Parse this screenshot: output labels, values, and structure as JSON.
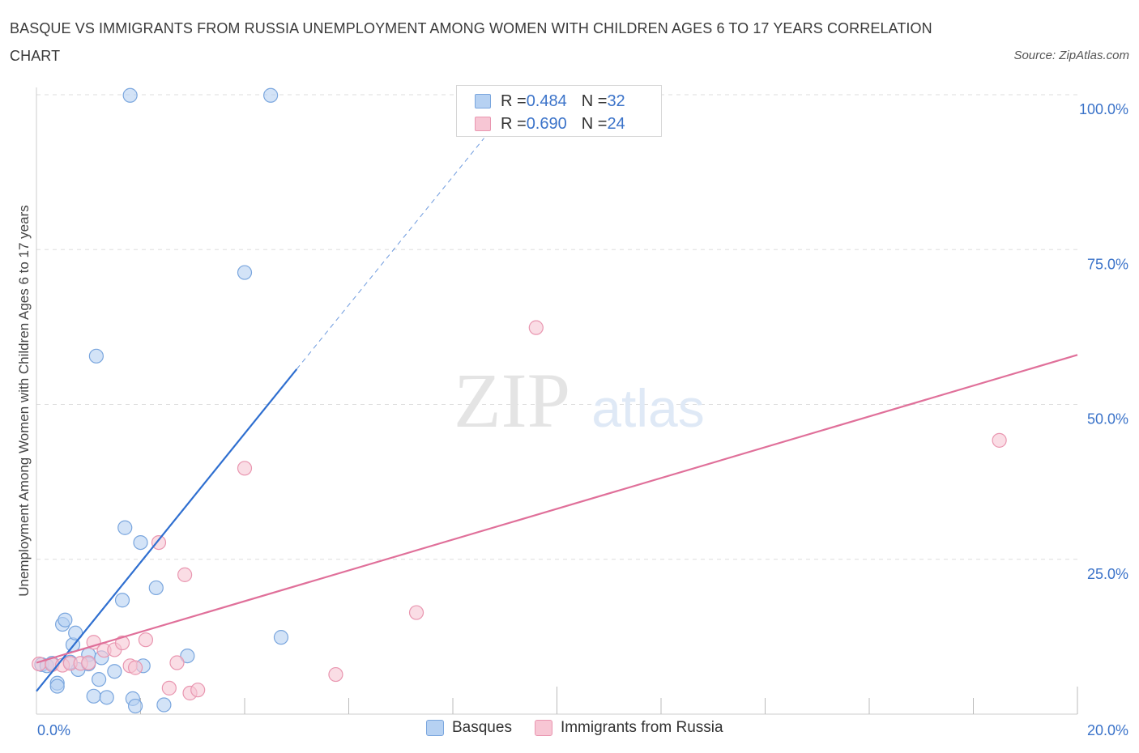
{
  "title": "BASQUE VS IMMIGRANTS FROM RUSSIA UNEMPLOYMENT AMONG WOMEN WITH CHILDREN AGES 6 TO 17 YEARS CORRELATION CHART",
  "source": "Source: ZipAtlas.com",
  "watermark": {
    "zip": "ZIP",
    "atlas": "atlas"
  },
  "colors": {
    "blue_fill": "#b6d1f2",
    "blue_stroke": "#7aa6de",
    "blue_line": "#2f6fd0",
    "pink_fill": "#f7c6d4",
    "pink_stroke": "#e996b0",
    "pink_line": "#e0709a",
    "tick_label": "#3b73c9",
    "grid": "#dddddd"
  },
  "legend_top": [
    {
      "r_label": "R = ",
      "r_value": "0.484",
      "n_label": "N = ",
      "n_value": "32"
    },
    {
      "r_label": "R = ",
      "r_value": "0.690",
      "n_label": "N = ",
      "n_value": "24"
    }
  ],
  "chart_data": {
    "type": "scatter",
    "title": "BASQUE VS IMMIGRANTS FROM RUSSIA UNEMPLOYMENT AMONG WOMEN WITH CHILDREN AGES 6 TO 17 YEARS CORRELATION CHART",
    "xlabel": "",
    "ylabel": "Unemployment Among Women with Children Ages 6 to 17 years",
    "xlim": [
      0,
      20
    ],
    "ylim": [
      0,
      100
    ],
    "x_tick_labels": [
      "0.0%",
      "20.0%"
    ],
    "y_ticks": [
      25,
      50,
      75,
      100
    ],
    "y_tick_labels": [
      "25.0%",
      "50.0%",
      "75.0%",
      "100.0%"
    ],
    "grid": true,
    "series": [
      {
        "name": "Basques",
        "R": 0.484,
        "N": 32,
        "points": [
          [
            0.1,
            8.0
          ],
          [
            0.2,
            7.8
          ],
          [
            0.3,
            8.2
          ],
          [
            0.4,
            5.0
          ],
          [
            0.4,
            4.5
          ],
          [
            0.5,
            14.5
          ],
          [
            0.55,
            15.2
          ],
          [
            0.7,
            11.2
          ],
          [
            0.75,
            13.1
          ],
          [
            0.8,
            7.2
          ],
          [
            1.0,
            9.6
          ],
          [
            1.1,
            2.9
          ],
          [
            1.15,
            57.8
          ],
          [
            1.2,
            5.6
          ],
          [
            1.25,
            9.1
          ],
          [
            1.35,
            2.7
          ],
          [
            1.5,
            6.9
          ],
          [
            1.65,
            18.4
          ],
          [
            1.7,
            30.1
          ],
          [
            1.85,
            2.5
          ],
          [
            1.9,
            1.3
          ],
          [
            2.0,
            27.7
          ],
          [
            2.05,
            7.8
          ],
          [
            2.3,
            20.4
          ],
          [
            2.45,
            1.5
          ],
          [
            2.9,
            9.4
          ],
          [
            1.8,
            99.9
          ],
          [
            4.0,
            71.3
          ],
          [
            4.5,
            99.9
          ],
          [
            4.7,
            12.4
          ],
          [
            0.65,
            8.4
          ],
          [
            1.0,
            8.1
          ]
        ],
        "trend": {
          "x": [
            0.0,
            5.0
          ],
          "y": [
            3.7,
            55.7
          ]
        },
        "trend_extension": {
          "x": [
            5.0,
            8.6
          ],
          "y": [
            55.7,
            93.0
          ]
        }
      },
      {
        "name": "Immigrants from Russia",
        "R": 0.69,
        "N": 24,
        "points": [
          [
            0.05,
            8.1
          ],
          [
            0.3,
            8.0
          ],
          [
            0.5,
            7.9
          ],
          [
            0.65,
            8.2
          ],
          [
            0.85,
            8.2
          ],
          [
            1.0,
            8.3
          ],
          [
            1.1,
            11.6
          ],
          [
            1.3,
            10.3
          ],
          [
            1.5,
            10.4
          ],
          [
            1.65,
            11.5
          ],
          [
            1.8,
            7.8
          ],
          [
            2.1,
            12.0
          ],
          [
            2.35,
            27.7
          ],
          [
            2.55,
            4.2
          ],
          [
            2.7,
            8.3
          ],
          [
            2.85,
            22.5
          ],
          [
            2.95,
            3.4
          ],
          [
            3.1,
            3.9
          ],
          [
            4.0,
            39.7
          ],
          [
            5.75,
            6.4
          ],
          [
            7.3,
            16.4
          ],
          [
            9.6,
            62.4
          ],
          [
            18.5,
            44.2
          ],
          [
            1.9,
            7.5
          ]
        ],
        "trend": {
          "x": [
            0.0,
            20.0
          ],
          "y": [
            8.3,
            58.0
          ]
        }
      }
    ]
  },
  "legend_bottom": [
    "Basques",
    "Immigrants from Russia"
  ]
}
